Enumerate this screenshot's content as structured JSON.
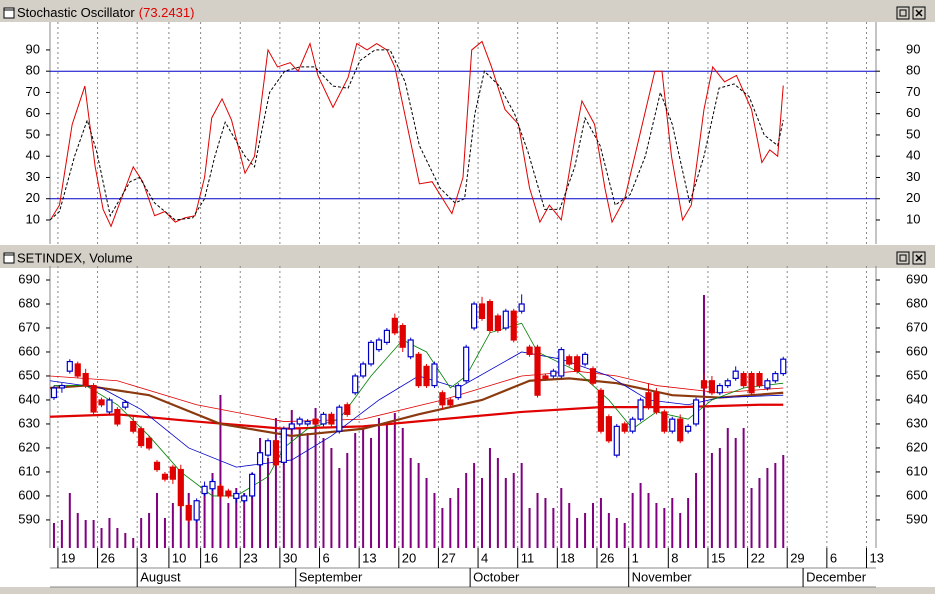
{
  "chart_data": [
    {
      "type": "line",
      "title": "Stochastic Oscillator",
      "title_value": "(73.2431)",
      "ylim": [
        -1.3,
        102.2
      ],
      "yticks": [
        10,
        20,
        30,
        40,
        50,
        60,
        70,
        80,
        90
      ],
      "hlines": [
        20,
        80
      ],
      "hline_color": "#0000c8",
      "series": [
        {
          "color": "#e00000",
          "dashed": false,
          "x": [
            -1.3,
            -0.3,
            1.3,
            2.9,
            4.2,
            5.2,
            6.2,
            7.3,
            9,
            10.2,
            11.7,
            13,
            14.3,
            15.5,
            16.8,
            18,
            18.9,
            20.2,
            21.4,
            23.1,
            24.3,
            26,
            27.2,
            28.8,
            29.8,
            31.3,
            32.3,
            34.2,
            36.1,
            37.2,
            38.5,
            39.7,
            41,
            42,
            43.3,
            45.1,
            46.7,
            47.7,
            49.2,
            50.6,
            51.7,
            53,
            54.2,
            55.9,
            57.6,
            59,
            60.3,
            61.5,
            63,
            64.7,
            65.6,
            67.2,
            68.5,
            69.4,
            71,
            72.9,
            74.8,
            75.7,
            76.9,
            78.3,
            79.4,
            81,
            82.1,
            83.6,
            85.1,
            87,
            88.3,
            89.3,
            90.3,
            91
          ],
          "values": [
            11,
            17,
            55,
            73,
            35,
            15,
            7,
            18,
            35,
            28,
            12,
            14,
            9,
            11,
            12,
            30,
            58,
            67,
            57,
            32,
            40,
            90,
            82,
            84,
            80,
            93,
            78,
            63,
            77,
            93,
            90,
            93,
            90,
            82,
            59,
            27,
            28,
            22,
            13,
            30,
            90,
            94,
            82,
            62,
            55,
            25,
            9,
            17,
            10,
            48,
            66,
            55,
            25,
            9,
            20,
            50,
            80,
            80,
            40,
            10,
            17,
            62,
            82,
            75,
            78,
            62,
            37,
            43,
            40,
            73.2431
          ]
        },
        {
          "color": "#000000",
          "dashed": true,
          "x": [
            -1.5,
            -0.3,
            1.6,
            3.2,
            4.4,
            6.1,
            8.6,
            9.8,
            11.7,
            14.3,
            16.5,
            18,
            19.3,
            20.6,
            23.1,
            24.3,
            26.2,
            28.1,
            30,
            31.9,
            34.2,
            36.1,
            37.6,
            39.5,
            41.4,
            43.3,
            45.1,
            47.7,
            49.6,
            50.8,
            52.1,
            53.3,
            55.2,
            57.1,
            58.8,
            60.9,
            62.8,
            64.7,
            66,
            67.9,
            69.8,
            71.7,
            73.6,
            75.5,
            77,
            79.2,
            81,
            82.9,
            84.8,
            86.7,
            88.6,
            90.3,
            91
          ],
          "values": [
            10,
            14,
            40,
            57,
            42,
            12,
            28,
            30,
            18,
            10,
            11,
            20,
            40,
            56,
            40,
            35,
            70,
            80,
            82,
            82,
            73,
            72,
            85,
            90,
            90,
            75,
            45,
            25,
            18,
            20,
            60,
            80,
            73,
            60,
            42,
            15,
            15,
            35,
            58,
            45,
            17,
            22,
            40,
            70,
            55,
            18,
            40,
            72,
            74,
            68,
            50,
            45,
            57
          ]
        }
      ]
    },
    {
      "type": "candlestick",
      "title": "SETINDEX, Volume",
      "xlim": [
        -1.5,
        102.7
      ],
      "xticks": [
        {
          "value": -0.5,
          "label": "19"
        },
        {
          "value": 4.5,
          "label": "26"
        },
        {
          "value": 9.5,
          "label": "3"
        },
        {
          "value": 13.5,
          "label": "10"
        },
        {
          "value": 17.5,
          "label": "16"
        },
        {
          "value": 22.5,
          "label": "23"
        },
        {
          "value": 27.5,
          "label": "30"
        },
        {
          "value": 32.5,
          "label": "6"
        },
        {
          "value": 37.5,
          "label": "13"
        },
        {
          "value": 42.5,
          "label": "20"
        },
        {
          "value": 47.5,
          "label": "27"
        },
        {
          "value": 52.5,
          "label": "4"
        },
        {
          "value": 57.5,
          "label": "11"
        },
        {
          "value": 62.5,
          "label": "18"
        },
        {
          "value": 67.5,
          "label": "26"
        },
        {
          "value": 71.5,
          "label": "1"
        },
        {
          "value": 76.5,
          "label": "8"
        },
        {
          "value": 81.5,
          "label": "15"
        },
        {
          "value": 86.5,
          "label": "22"
        },
        {
          "value": 91.5,
          "label": "29"
        },
        {
          "value": 96.5,
          "label": "6"
        },
        {
          "value": 101.5,
          "label": "13"
        }
      ],
      "months": [
        {
          "value": 9.5,
          "label": "August"
        },
        {
          "value": 29.5,
          "label": "September"
        },
        {
          "value": 51.5,
          "label": "October"
        },
        {
          "value": 71.5,
          "label": "November"
        },
        {
          "value": 93.5,
          "label": "December"
        }
      ],
      "ylim": [
        578.3,
        695
      ],
      "yticks": [
        590,
        600,
        610,
        620,
        630,
        640,
        650,
        660,
        670,
        680,
        690
      ],
      "up_color": "#0000c8",
      "down_color": "#e00000",
      "x": [
        -1,
        0,
        1,
        2,
        3,
        4,
        5,
        6,
        7,
        8,
        9,
        10,
        11,
        12,
        13,
        14,
        15,
        16,
        17,
        18,
        19,
        20,
        21,
        22,
        23,
        24,
        25,
        26,
        27,
        28,
        29,
        30,
        31,
        32,
        33,
        34,
        35,
        36,
        37,
        38,
        39,
        40,
        41,
        42,
        43,
        44,
        45,
        46,
        47,
        48,
        49,
        50,
        51,
        52,
        53,
        54,
        55,
        56,
        57,
        58,
        59,
        60,
        61,
        62,
        63,
        64,
        65,
        66,
        67,
        68,
        69,
        70,
        71,
        72,
        73,
        74,
        75,
        76,
        77,
        78,
        79,
        80,
        81,
        82,
        83,
        84,
        85,
        86,
        87,
        88,
        89,
        90,
        91
      ],
      "open": [
        641,
        645,
        652,
        655,
        651,
        646,
        640,
        635,
        636,
        637,
        631,
        628,
        624,
        614,
        609,
        612,
        611,
        596,
        590,
        601,
        603,
        604,
        602,
        599,
        598,
        600,
        613,
        617,
        623,
        614,
        628,
        630,
        630,
        632,
        630,
        634,
        627,
        638,
        643,
        650,
        655,
        661,
        664,
        674,
        671,
        658,
        659,
        654,
        646,
        643,
        640,
        641,
        648,
        670,
        680,
        681,
        675,
        670,
        677,
        677,
        662,
        662,
        650,
        650,
        650,
        658,
        658,
        655,
        653,
        644,
        633,
        617,
        630,
        627,
        632,
        643,
        643,
        635,
        627,
        632,
        627,
        630,
        648,
        648,
        643,
        646,
        649,
        651,
        651,
        651,
        645,
        648,
        651
      ],
      "high": [
        646,
        647,
        657,
        656,
        653,
        647,
        641,
        641,
        637,
        640,
        633,
        629,
        625,
        615,
        610,
        613,
        613,
        597,
        599,
        606,
        607,
        605,
        603,
        602,
        601,
        610,
        619,
        624,
        624,
        629,
        631,
        633,
        632,
        633,
        635,
        635,
        638,
        639,
        651,
        656,
        665,
        666,
        670,
        676,
        672,
        666,
        660,
        655,
        656,
        644,
        641,
        647,
        663,
        681,
        683,
        682,
        676,
        678,
        678,
        684,
        663,
        663,
        651,
        653,
        662,
        659,
        659,
        660,
        654,
        645,
        634,
        630,
        631,
        633,
        641,
        647,
        645,
        636,
        633,
        634,
        630,
        641,
        651,
        650,
        647,
        649,
        654,
        652,
        652,
        652,
        649,
        652,
        658
      ],
      "low": [
        640,
        643,
        651,
        649,
        645,
        634,
        637,
        634,
        629,
        636,
        626,
        620,
        619,
        610,
        606,
        605,
        595,
        589,
        589,
        600,
        602,
        599,
        599,
        597,
        597,
        599,
        612,
        616,
        612,
        613,
        627,
        629,
        629,
        629,
        629,
        629,
        626,
        633,
        642,
        649,
        654,
        660,
        663,
        667,
        660,
        657,
        645,
        645,
        645,
        636,
        637,
        640,
        647,
        669,
        673,
        668,
        668,
        669,
        664,
        676,
        658,
        641,
        648,
        649,
        649,
        654,
        651,
        654,
        646,
        626,
        622,
        616,
        626,
        626,
        631,
        636,
        634,
        626,
        626,
        622,
        626,
        629,
        644,
        642,
        642,
        645,
        648,
        645,
        642,
        645,
        644,
        647,
        650
      ],
      "close": [
        645,
        646,
        656,
        650,
        646,
        635,
        638,
        640,
        630,
        639,
        627,
        621,
        620,
        611,
        607,
        607,
        596,
        590,
        598,
        604,
        606,
        600,
        600,
        601,
        600,
        609,
        618,
        623,
        613,
        628,
        630,
        632,
        631,
        630,
        634,
        630,
        637,
        634,
        650,
        655,
        664,
        665,
        669,
        668,
        662,
        665,
        646,
        646,
        655,
        638,
        638,
        646,
        662,
        680,
        674,
        669,
        669,
        677,
        665,
        680,
        659,
        642,
        649,
        652,
        661,
        655,
        652,
        659,
        647,
        627,
        623,
        629,
        627,
        632,
        640,
        637,
        635,
        627,
        632,
        623,
        629,
        640,
        645,
        643,
        646,
        648,
        652,
        646,
        643,
        646,
        648,
        651,
        657
      ],
      "volume": {
        "color": "#800080",
        "values": [
          25,
          28,
          55,
          35,
          28,
          28,
          20,
          30,
          20,
          15,
          10,
          30,
          35,
          55,
          30,
          45,
          60,
          55,
          35,
          60,
          75,
          153,
          45,
          60,
          55,
          75,
          110,
          90,
          130,
          110,
          138,
          120,
          115,
          140,
          110,
          100,
          80,
          95,
          115,
          120,
          110,
          130,
          125,
          135,
          120,
          90,
          85,
          70,
          55,
          40,
          50,
          60,
          75,
          85,
          70,
          100,
          90,
          70,
          75,
          85,
          40,
          55,
          50,
          40,
          60,
          45,
          30,
          35,
          45,
          50,
          35,
          30,
          25,
          55,
          65,
          55,
          45,
          40,
          50,
          35,
          50,
          75,
          253,
          95,
          100,
          120,
          110,
          120,
          60,
          70,
          80,
          85,
          93
        ]
      },
      "moving_averages": [
        {
          "color": "#e00000",
          "width": 2.2,
          "x": [
            -1.5,
            7,
            17,
            28,
            38,
            48,
            58,
            68,
            78,
            88,
            91
          ],
          "values": [
            633,
            634,
            631,
            628,
            629,
            632,
            635,
            637,
            637,
            638,
            638
          ]
        },
        {
          "color": "#8b3a10",
          "width": 2.2,
          "x": [
            -1.5,
            3,
            11,
            20,
            29,
            38,
            45,
            53,
            59,
            64,
            70,
            77,
            83,
            91
          ],
          "values": [
            645,
            646,
            642,
            630,
            625,
            628,
            634,
            640,
            648,
            649,
            647,
            642,
            641,
            643
          ]
        },
        {
          "color": "#e00000",
          "width": 0.8,
          "x": [
            -1.5,
            7,
            17,
            28,
            38,
            48,
            58,
            65,
            70,
            75,
            83,
            91
          ],
          "values": [
            650,
            648,
            638,
            631,
            632,
            640,
            650,
            652,
            650,
            646,
            643,
            645
          ]
        },
        {
          "color": "#0000c8",
          "width": 0.8,
          "x": [
            -1.5,
            5,
            10,
            16,
            22,
            29,
            34,
            40,
            45,
            50,
            58,
            63,
            69,
            74,
            79,
            83,
            91
          ],
          "values": [
            648,
            645,
            636,
            620,
            612,
            615,
            625,
            640,
            650,
            645,
            660,
            657,
            650,
            640,
            638,
            641,
            642
          ]
        },
        {
          "color": "#008000",
          "width": 0.8,
          "x": [
            -1,
            3,
            7,
            11,
            15,
            19,
            22,
            26,
            28,
            31,
            35,
            39,
            43,
            46,
            49,
            51,
            54,
            58,
            60,
            65,
            69,
            72,
            75,
            79,
            82,
            86,
            91
          ],
          "values": [
            646,
            646,
            638,
            625,
            610,
            600,
            600,
            608,
            620,
            628,
            632,
            650,
            665,
            660,
            645,
            650,
            668,
            672,
            660,
            652,
            640,
            628,
            635,
            632,
            640,
            645,
            647
          ]
        }
      ]
    }
  ]
}
